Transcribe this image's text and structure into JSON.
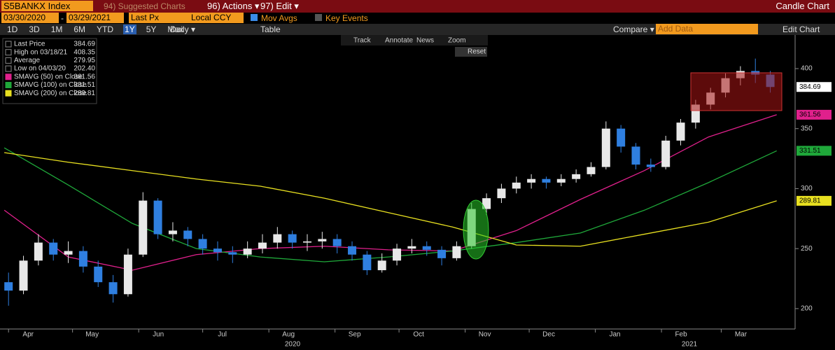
{
  "ui": {
    "ticker": "S5BANKX Index",
    "suggested": "94) Suggested Charts",
    "actions": "96) Actions ▾",
    "edit": "97) Edit ▾",
    "chart_kind": "Candle Chart",
    "date_from": "03/30/2020",
    "date_sep": "-",
    "date_to": "03/29/2021",
    "field": "Last Px",
    "currency": "Local CCY",
    "mov_avgs": "Mov Avgs",
    "key_events": "Key Events",
    "ranges": [
      "1D",
      "3D",
      "1M",
      "6M",
      "YTD",
      "1Y",
      "5Y",
      "Max"
    ],
    "period": "Daily ▾",
    "table": "Table",
    "compare": "Compare ▾",
    "add_data": "Add Data",
    "edit_chart": "Edit Chart",
    "tools": [
      "Track",
      "Annotate",
      "News",
      "Zoom"
    ],
    "reset": "Reset"
  },
  "chart_data": {
    "type": "candlestick",
    "legend": {
      "last_label": "Last Price",
      "high_label": "High on 03/18/21",
      "average_label": "Average",
      "average": 279.95,
      "low_label": "Low on 04/03/20",
      "low_value_label": "202.40"
    },
    "candles": {
      "up_color": "#e8e8e8",
      "down_color": "#2f7fe0",
      "x": [
        2,
        9,
        16,
        23,
        30,
        37,
        44,
        51,
        58,
        65,
        72,
        79,
        86,
        93,
        100,
        107,
        114,
        121,
        128,
        135,
        142,
        149,
        156,
        163,
        170,
        177,
        184,
        191,
        198,
        205,
        212,
        219,
        226,
        233,
        240,
        247,
        254,
        261,
        268,
        275,
        282,
        289,
        296,
        303,
        310,
        317,
        324,
        331,
        338,
        345,
        352,
        359
      ],
      "open": [
        222,
        215,
        240,
        255,
        245,
        248,
        235,
        222,
        212,
        245,
        290,
        262,
        265,
        258,
        250,
        247,
        245,
        250,
        255,
        262,
        255,
        256,
        258,
        252,
        245,
        232,
        240,
        250,
        252,
        249,
        242,
        252,
        283,
        292,
        300,
        305,
        308,
        305,
        308,
        312,
        318,
        350,
        335,
        320,
        318,
        340,
        355,
        370,
        380,
        392,
        398,
        395
      ],
      "high": [
        230,
        244,
        262,
        258,
        256,
        252,
        240,
        228,
        250,
        297,
        292,
        272,
        268,
        262,
        256,
        252,
        256,
        262,
        268,
        265,
        262,
        264,
        262,
        256,
        248,
        246,
        254,
        258,
        256,
        252,
        256,
        288,
        296,
        304,
        310,
        312,
        310,
        312,
        316,
        322,
        356,
        353,
        338,
        325,
        344,
        358,
        374,
        384,
        396,
        402,
        408.35,
        398
      ],
      "low": [
        202.4,
        212,
        236,
        240,
        238,
        230,
        218,
        205,
        210,
        243,
        258,
        256,
        252,
        245,
        240,
        238,
        242,
        246,
        250,
        250,
        248,
        250,
        246,
        240,
        228,
        230,
        236,
        246,
        244,
        236,
        240,
        250,
        278,
        288,
        296,
        300,
        300,
        302,
        305,
        310,
        316,
        330,
        316,
        314,
        316,
        336,
        350,
        366,
        376,
        386,
        388,
        380
      ],
      "close": [
        215,
        240,
        255,
        245,
        248,
        235,
        222,
        212,
        245,
        290,
        262,
        265,
        258,
        250,
        247,
        245,
        250,
        255,
        262,
        255,
        256,
        258,
        252,
        245,
        232,
        240,
        250,
        252,
        249,
        242,
        252,
        283,
        292,
        300,
        305,
        308,
        305,
        308,
        312,
        318,
        350,
        335,
        320,
        318,
        340,
        355,
        370,
        380,
        392,
        398,
        395,
        384.69
      ]
    },
    "x": [
      0,
      30,
      60,
      90,
      120,
      150,
      180,
      210,
      240,
      270,
      300,
      330,
      362
    ],
    "series": [
      {
        "name": "SMAVG (50)  on Close",
        "color": "#e0208c",
        "values": [
          282,
          243,
          232,
          245,
          250,
          252,
          249,
          248,
          265,
          291,
          315,
          343,
          361.56
        ]
      },
      {
        "name": "SMAVG (100) on Close",
        "color": "#1fa83a",
        "values": [
          334,
          303,
          271,
          250,
          243,
          239,
          243,
          248,
          255,
          263,
          282,
          305,
          331.51
        ]
      },
      {
        "name": "SMAVG (200) on Close",
        "color": "#e8e020",
        "values": [
          330,
          322,
          315,
          308,
          302,
          292,
          280,
          268,
          253,
          252,
          262,
          272,
          289.81
        ]
      }
    ],
    "xlim": [
      -2,
      368
    ],
    "xticks": [
      {
        "value": 2,
        "label": "Apr"
      },
      {
        "value": 32,
        "label": "May"
      },
      {
        "value": 63,
        "label": "Jun"
      },
      {
        "value": 93,
        "label": "Jul"
      },
      {
        "value": 124,
        "label": "Aug"
      },
      {
        "value": 155,
        "label": "Sep"
      },
      {
        "value": 185,
        "label": "Oct"
      },
      {
        "value": 216,
        "label": "Nov"
      },
      {
        "value": 246,
        "label": "Dec"
      },
      {
        "value": 277,
        "label": "Jan"
      },
      {
        "value": 308,
        "label": "Feb"
      },
      {
        "value": 336,
        "label": "Mar"
      }
    ],
    "years": [
      "2020",
      "2021"
    ],
    "ylim": [
      183,
      428
    ],
    "yticks": [
      200,
      250,
      300,
      350,
      400
    ]
  }
}
